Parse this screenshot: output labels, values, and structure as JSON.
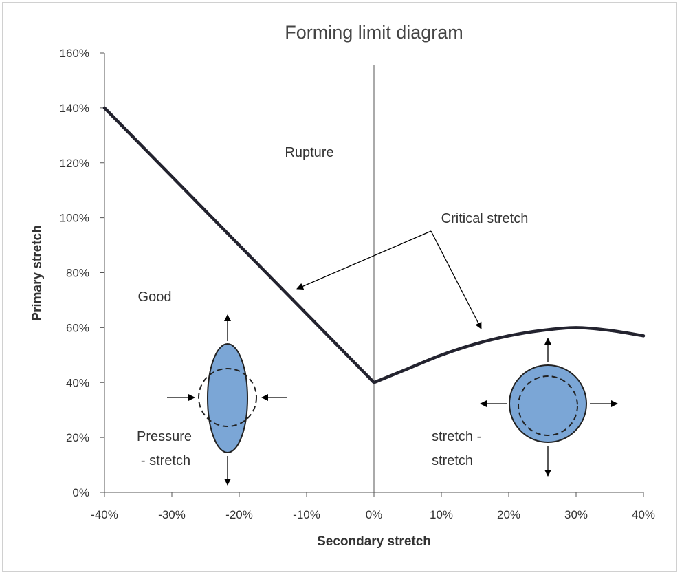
{
  "chart_data": {
    "type": "line",
    "title": "Forming limit diagram",
    "xlabel": "Secondary stretch",
    "ylabel": "Primary stretch",
    "xlim": [
      -40,
      40
    ],
    "ylim": [
      0,
      160
    ],
    "x_ticks": [
      "-40%",
      "-30%",
      "-20%",
      "-10%",
      "0%",
      "10%",
      "20%",
      "30%",
      "40%"
    ],
    "y_ticks": [
      "0%",
      "20%",
      "40%",
      "60%",
      "80%",
      "100%",
      "120%",
      "140%",
      "160%"
    ],
    "grid": false,
    "series": [
      {
        "color": "#23232f",
        "x": [
          -40,
          0,
          5,
          10,
          15,
          20,
          25,
          30,
          35,
          40
        ],
        "y": [
          140,
          40,
          45,
          50,
          54,
          57,
          59,
          60,
          59,
          57
        ]
      }
    ],
    "vertical_line_x": 0,
    "annotations": {
      "rupture": {
        "text": "Rupture",
        "color": "#e00000"
      },
      "good": {
        "text": "Good",
        "color": "#4a7a2a"
      },
      "critical": {
        "text": "Critical stretch"
      },
      "pressure_1": {
        "text": "Pressure"
      },
      "pressure_2": {
        "text": "- stretch"
      },
      "stretch_1": {
        "text": "stretch -"
      },
      "stretch_2": {
        "text": "stretch"
      }
    },
    "shape_fill": "#7ba6d6"
  }
}
